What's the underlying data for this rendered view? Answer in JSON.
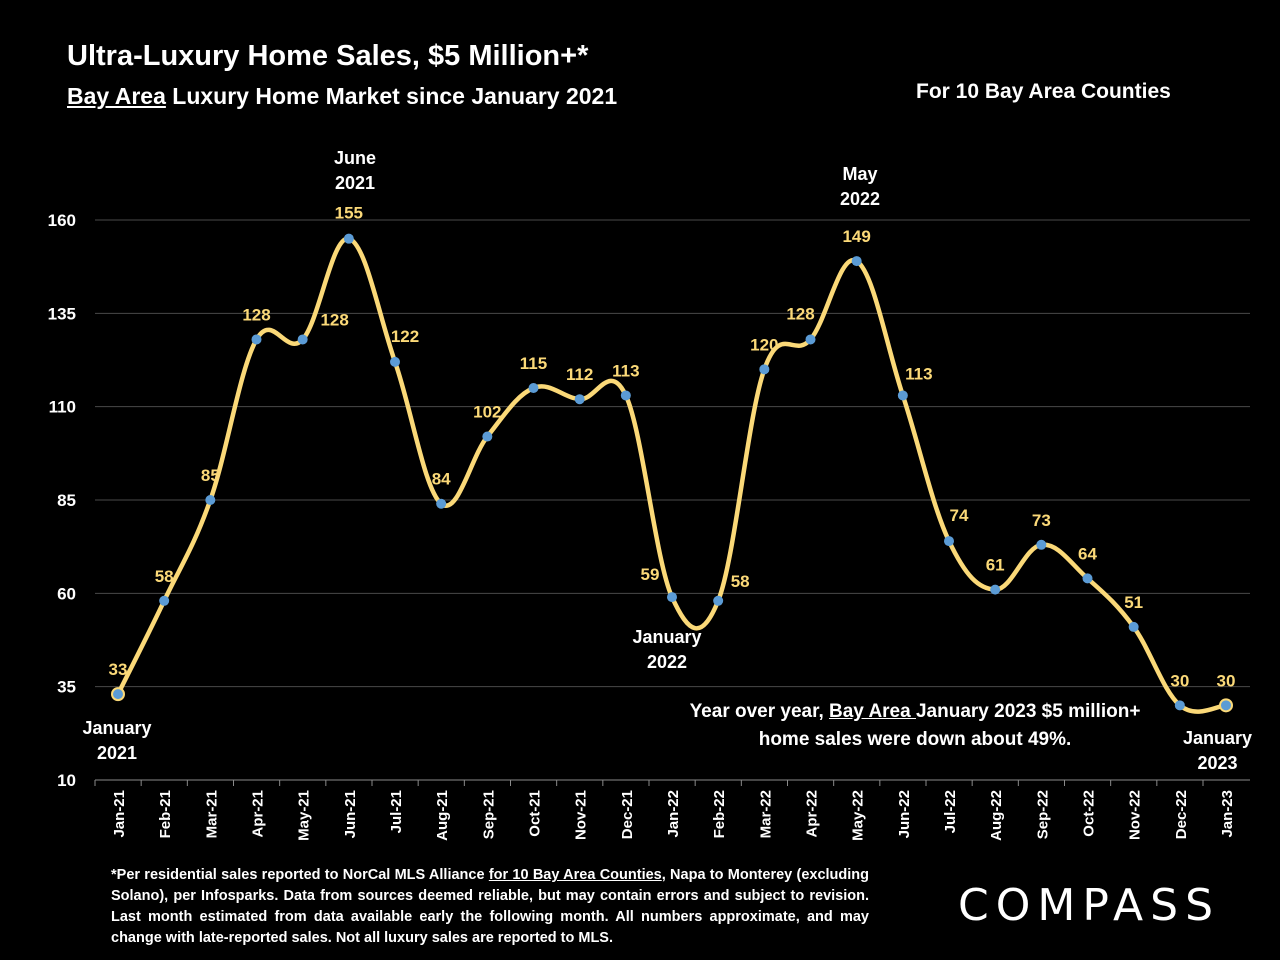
{
  "header": {
    "title": "Ultra-Luxury Home Sales, $5 Million+*",
    "subtitle_underlined": "Bay Area",
    "subtitle_rest": " Luxury Home Market since January 2021",
    "scope": "For 10 Bay Area Counties"
  },
  "annotations": {
    "start": "January\n2021",
    "peak1": "June\n2021",
    "trough": "January\n2022",
    "peak2": "May\n2022",
    "end": "January\n2023"
  },
  "yoy": {
    "pre": "Year over year, ",
    "underlined": "Bay Area ",
    "post": "January 2023 $5 million+ home sales were down about 49%."
  },
  "footnote": {
    "pre": "*Per residential sales reported to NorCal MLS Alliance ",
    "underlined": "for 10 Bay Area Counties",
    "post": ", Napa to Monterey (excluding Solano), per Infosparks. Data from sources deemed reliable, but may contain errors and subject to revision. Last month estimated from data available early the following month. All numbers approximate, and may change with late-reported sales. Not all luxury sales are reported to MLS."
  },
  "logo": "COMPASS",
  "colors": {
    "line": "#fbd978",
    "marker": "#5b9bd5",
    "label": "#fbd978",
    "grid": "#4a4a4a",
    "text": "#ffffff"
  },
  "chart_data": {
    "type": "line",
    "title": "Ultra-Luxury Home Sales, $5 Million+*",
    "categories": [
      "Jan-21",
      "Feb-21",
      "Mar-21",
      "Apr-21",
      "May-21",
      "Jun-21",
      "Jul-21",
      "Aug-21",
      "Sep-21",
      "Oct-21",
      "Nov-21",
      "Dec-21",
      "Jan-22",
      "Feb-22",
      "Mar-22",
      "Apr-22",
      "May-22",
      "Jun-22",
      "Jul-22",
      "Aug-22",
      "Sep-22",
      "Oct-22",
      "Nov-22",
      "Dec-22",
      "Jan-23"
    ],
    "values": [
      33,
      58,
      85,
      128,
      128,
      155,
      122,
      84,
      102,
      115,
      112,
      113,
      59,
      58,
      120,
      128,
      149,
      113,
      74,
      61,
      73,
      64,
      51,
      30,
      30
    ],
    "ylim": [
      10,
      160
    ],
    "yticks": [
      10,
      35,
      60,
      85,
      110,
      135,
      160
    ],
    "grid": true,
    "xlabel": "",
    "ylabel": ""
  }
}
